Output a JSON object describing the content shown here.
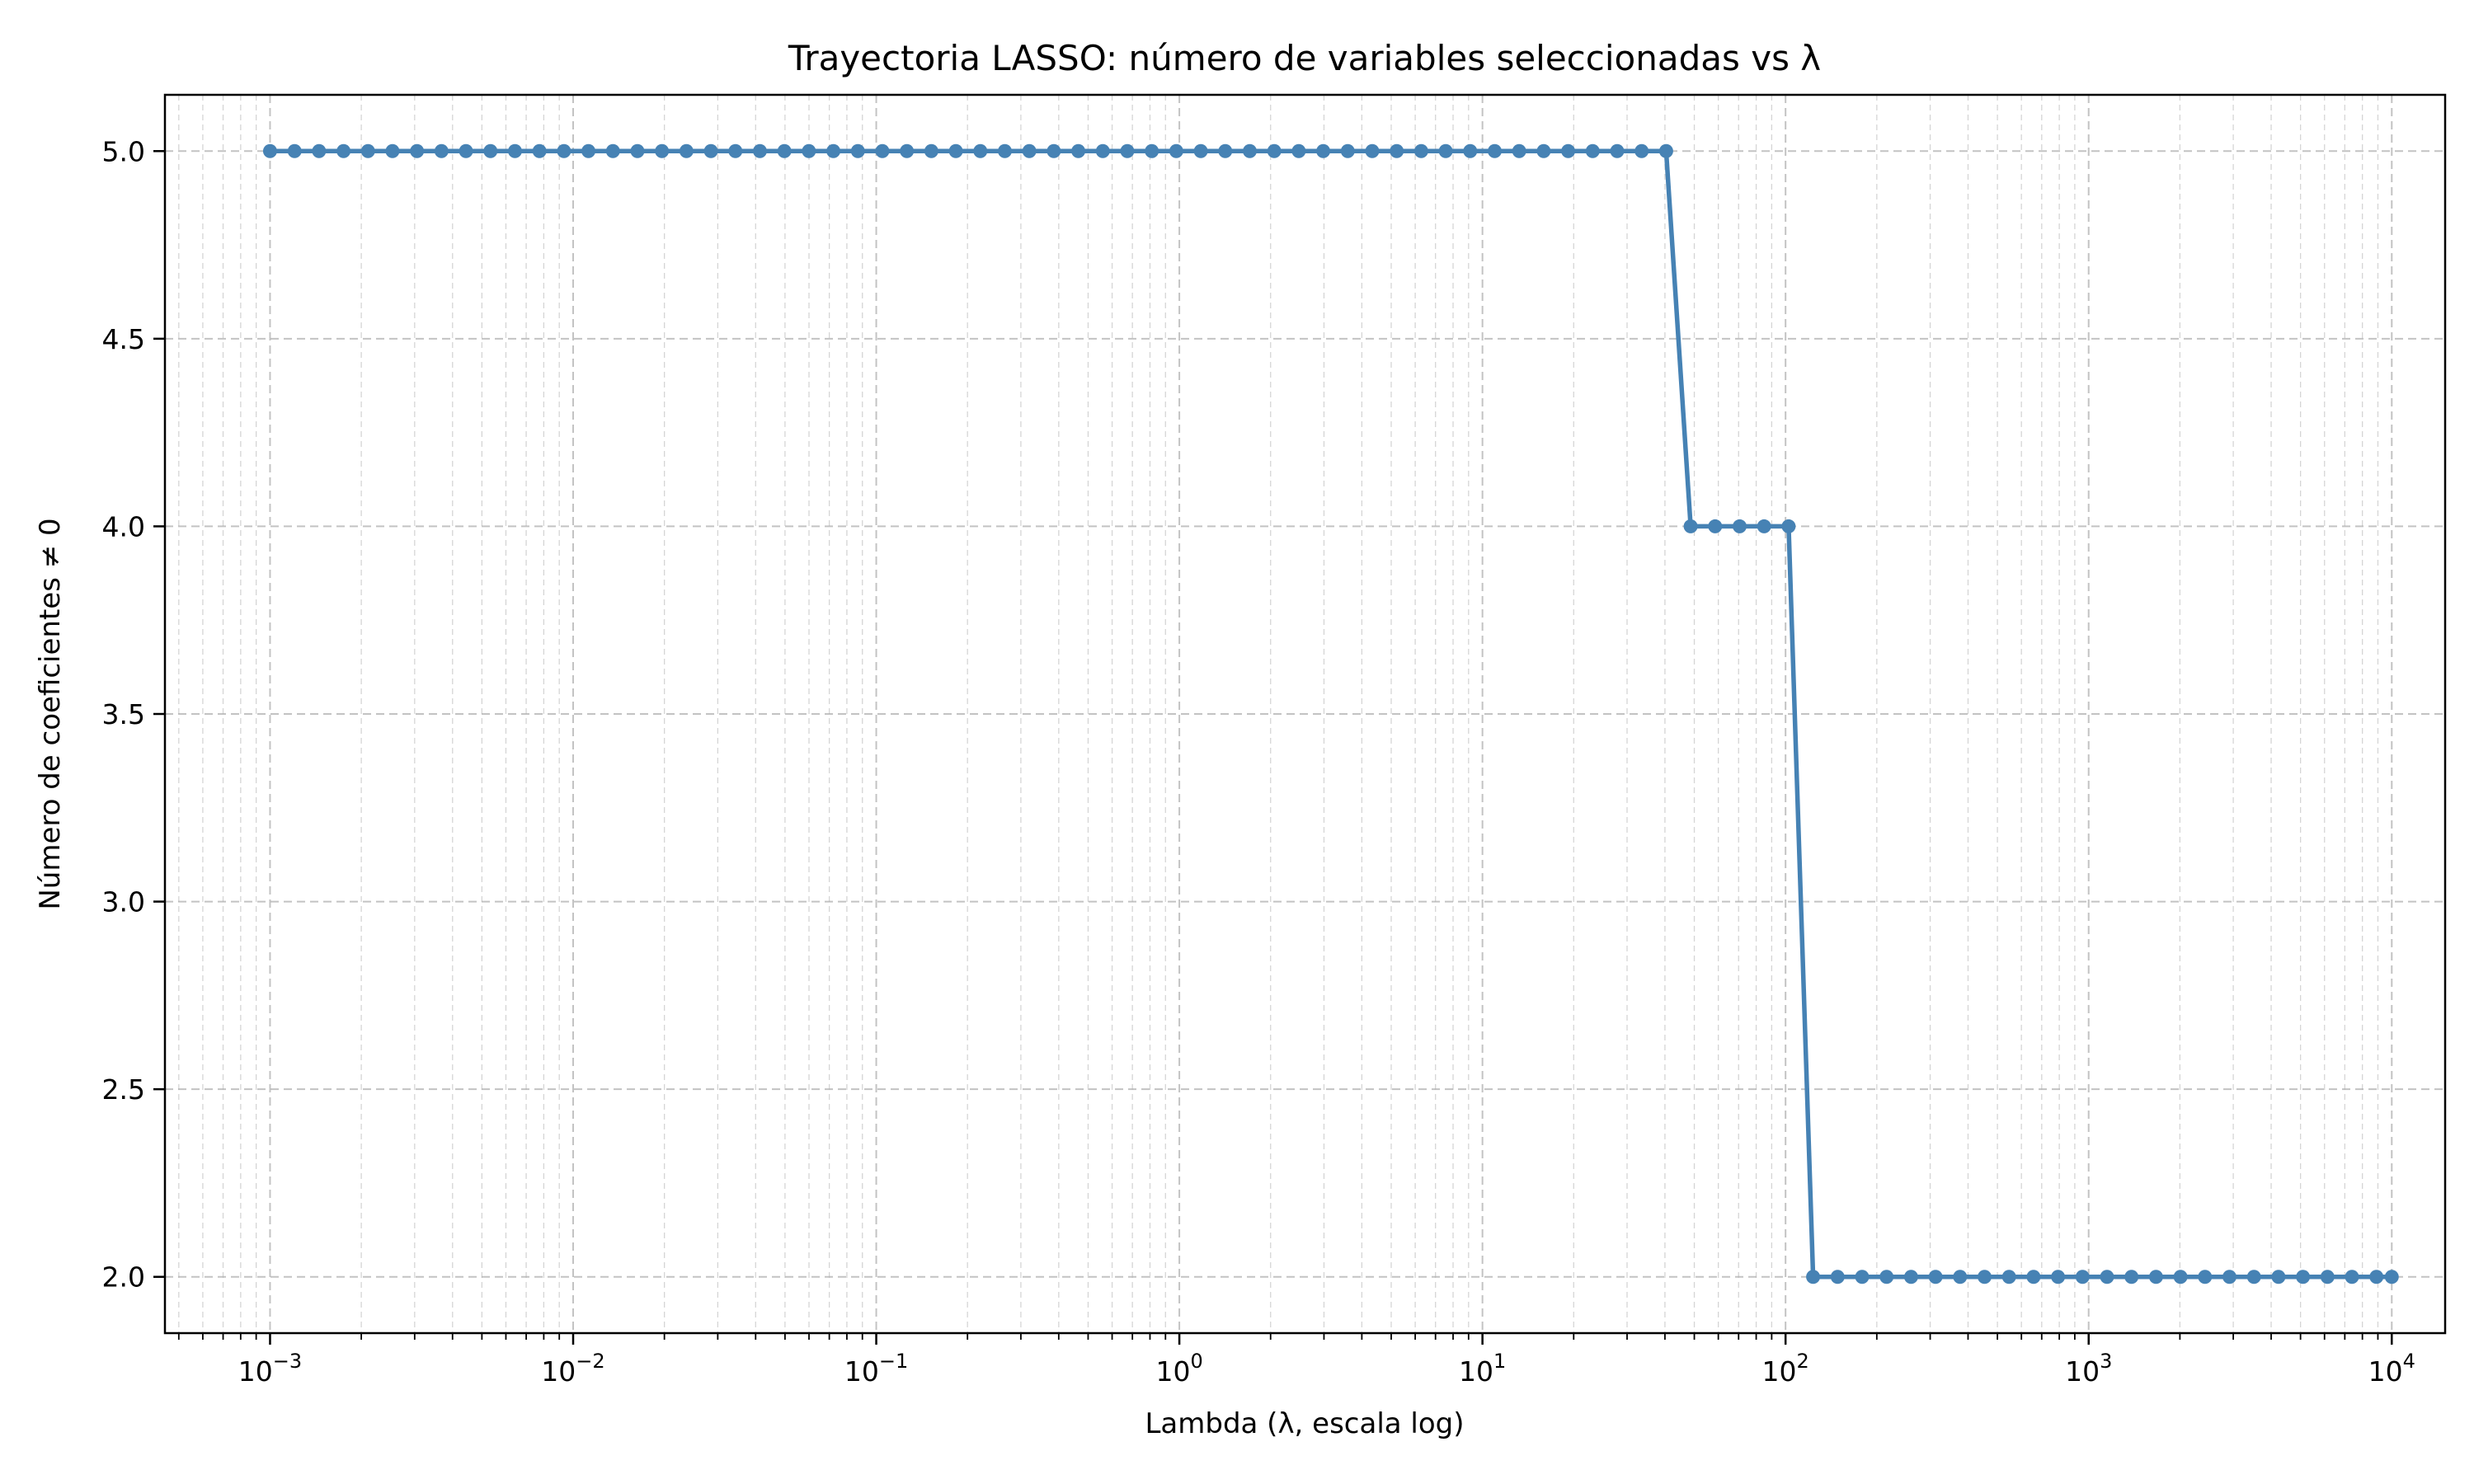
{
  "chart_data": {
    "type": "line",
    "title": "Trayectoria LASSO: número de variables seleccionadas vs λ",
    "xlabel": "Lambda (λ, escala log)",
    "ylabel": "Número de coeficientes ≠ 0",
    "x_scale": "log",
    "xlim": [
      0.00045,
      15000
    ],
    "ylim": [
      1.85,
      5.15
    ],
    "x_ticks": [
      0.001,
      0.01,
      0.1,
      1,
      10,
      100,
      1000,
      10000
    ],
    "x_tick_labels": [
      {
        "base": "10",
        "exp": "−3"
      },
      {
        "base": "10",
        "exp": "−2"
      },
      {
        "base": "10",
        "exp": "−1"
      },
      {
        "base": "10",
        "exp": "0"
      },
      {
        "base": "10",
        "exp": "1"
      },
      {
        "base": "10",
        "exp": "2"
      },
      {
        "base": "10",
        "exp": "3"
      },
      {
        "base": "10",
        "exp": "4"
      }
    ],
    "y_ticks": [
      2.0,
      2.5,
      3.0,
      3.5,
      4.0,
      4.5,
      5.0
    ],
    "y_tick_labels": [
      "2.0",
      "2.5",
      "3.0",
      "3.5",
      "4.0",
      "4.5",
      "5.0"
    ],
    "grid": "major and minor, dashed",
    "series": [
      {
        "color": "#4682b4",
        "marker": "circle",
        "x": [
          0.001,
          0.001205,
          0.001451,
          0.001748,
          0.002105,
          0.002535,
          0.003054,
          0.003678,
          0.00443,
          0.005337,
          0.006428,
          0.007743,
          0.009326,
          0.011233,
          0.01353,
          0.016298,
          0.01963,
          0.023645,
          0.02848,
          0.034305,
          0.04132,
          0.04977,
          0.059948,
          0.072208,
          0.086975,
          0.104762,
          0.126186,
          0.151991,
          0.183074,
          0.220513,
          0.265609,
          0.319927,
          0.385353,
          0.464159,
          0.559081,
          0.673415,
          0.811131,
          0.97701,
          1.176812,
          1.417474,
          1.707353,
          2.056512,
          2.477076,
          2.983647,
          3.593814,
          4.328761,
          5.214008,
          6.280291,
          7.564633,
          9.111628,
          10.974988,
          13.219411,
          15.922828,
          19.179103,
          23.101297,
          27.825594,
          33.516026,
          40.370173,
          48.626016,
          58.570208,
          70.548023,
          84.975344,
          102.353102,
          123.284674,
          148.496826,
          178.864953,
          215.443469,
          259.502421,
          312.571585,
          376.493581,
          453.487851,
          546.227722,
          657.933225,
          792.482898,
          954.548457,
          1149.756995,
          1384.886371,
          1668.100537,
          2009.233003,
          2420.128265,
          2915.053063,
          3511.191734,
          4229.242874,
          5094.138015,
          6135.907273,
          7390.722034,
          8902.150854,
          10000
        ],
        "y": [
          5,
          5,
          5,
          5,
          5,
          5,
          5,
          5,
          5,
          5,
          5,
          5,
          5,
          5,
          5,
          5,
          5,
          5,
          5,
          5,
          5,
          5,
          5,
          5,
          5,
          5,
          5,
          5,
          5,
          5,
          5,
          5,
          5,
          5,
          5,
          5,
          5,
          5,
          5,
          5,
          5,
          5,
          5,
          5,
          5,
          5,
          5,
          5,
          5,
          5,
          5,
          5,
          5,
          5,
          5,
          5,
          5,
          5,
          4,
          4,
          4,
          4,
          4,
          2,
          2,
          2,
          2,
          2,
          2,
          2,
          2,
          2,
          2,
          2,
          2,
          2,
          2,
          2,
          2,
          2,
          2,
          2,
          2,
          2,
          2,
          2,
          2,
          2
        ]
      }
    ]
  }
}
